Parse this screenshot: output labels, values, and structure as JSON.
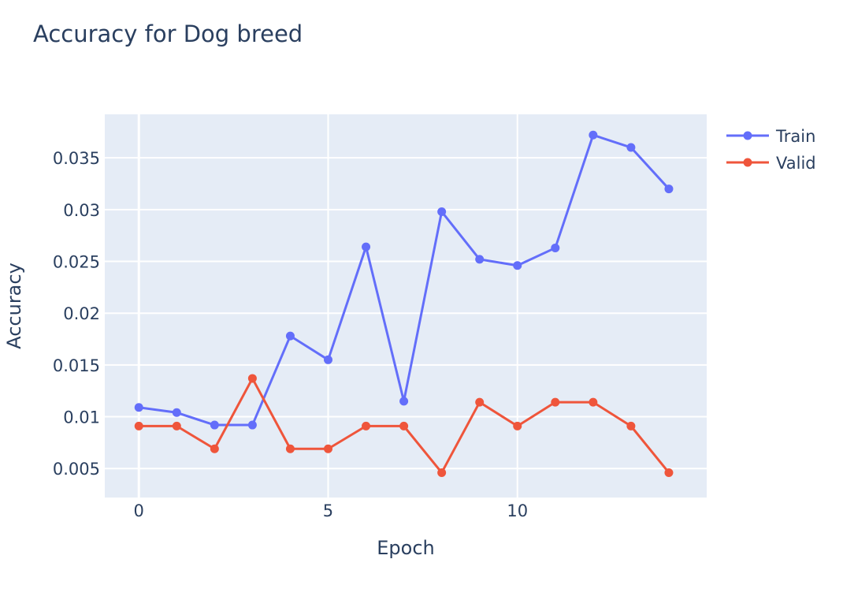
{
  "chart_data": {
    "type": "line",
    "title": "Accuracy for Dog breed",
    "xlabel": "Epoch",
    "ylabel": "Accuracy",
    "x": [
      0,
      1,
      2,
      3,
      4,
      5,
      6,
      7,
      8,
      9,
      10,
      11,
      12,
      13,
      14
    ],
    "xlim": [
      -0.9,
      15.0
    ],
    "ylim": [
      0.0022,
      0.0392
    ],
    "xticks": [
      0,
      5,
      10
    ],
    "yticks": [
      0.005,
      0.01,
      0.015,
      0.02,
      0.025,
      0.03,
      0.035
    ],
    "ytick_labels": [
      "0.005",
      "0.01",
      "0.015",
      "0.02",
      "0.025",
      "0.03",
      "0.035"
    ],
    "grid": true,
    "legend_position": "top-right",
    "series": [
      {
        "name": "Train",
        "color": "#636efa",
        "values": [
          0.0109,
          0.0104,
          0.0092,
          0.0092,
          0.0178,
          0.0155,
          0.0264,
          0.0115,
          0.0298,
          0.0252,
          0.0246,
          0.0263,
          0.0372,
          0.036,
          0.032
        ]
      },
      {
        "name": "Valid",
        "color": "#ef553b",
        "values": [
          0.0091,
          0.0091,
          0.0069,
          0.0137,
          0.0069,
          0.0069,
          0.0091,
          0.0091,
          0.0046,
          0.0114,
          0.0091,
          0.0114,
          0.0114,
          0.0091,
          0.0046
        ]
      }
    ]
  }
}
